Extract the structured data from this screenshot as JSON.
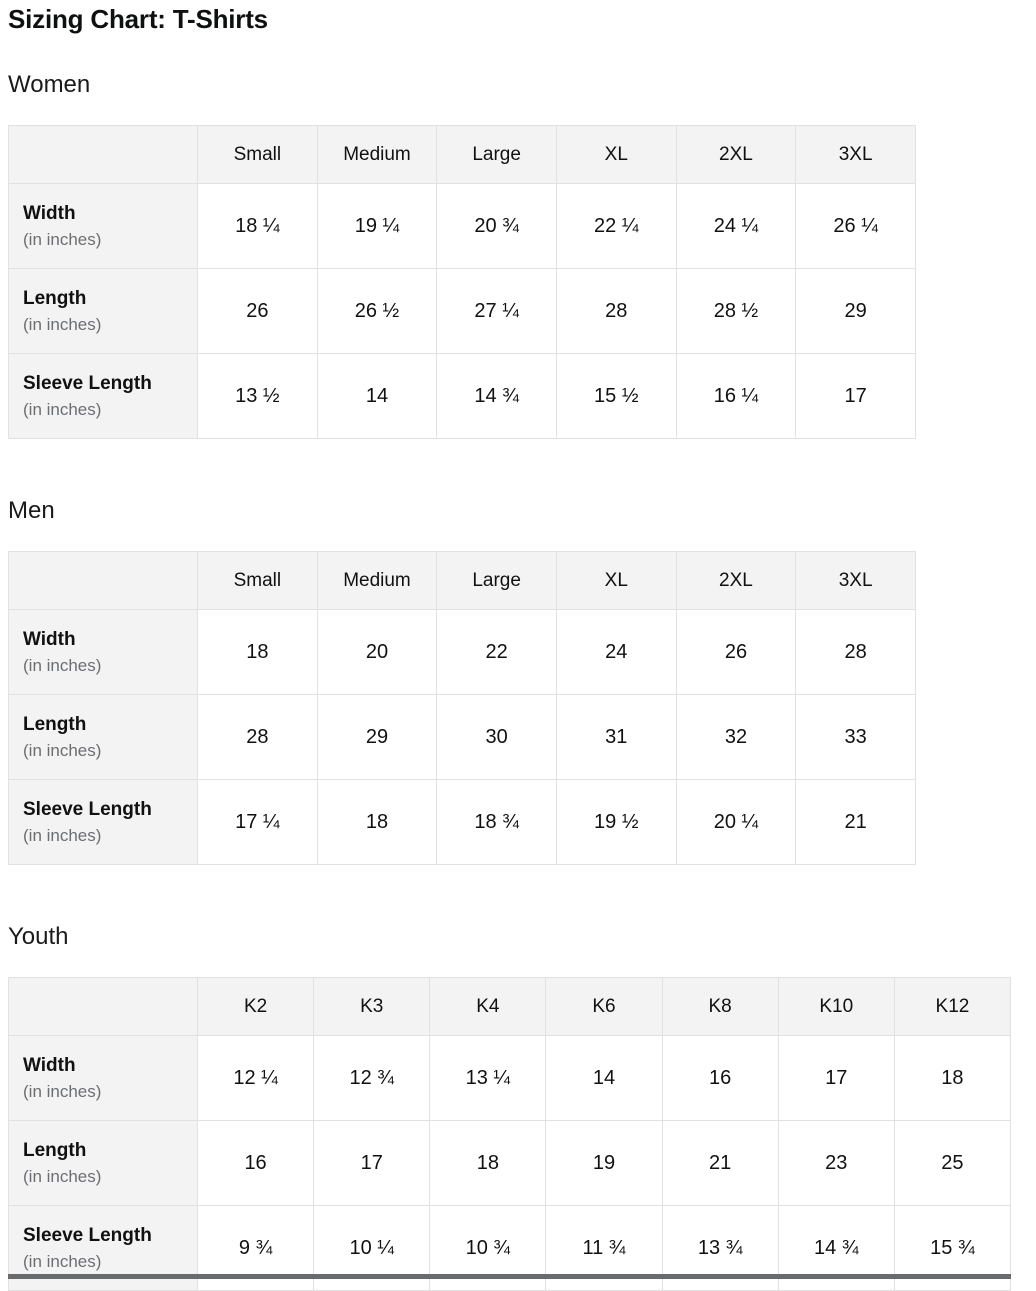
{
  "page": {
    "title": "Sizing Chart: T-Shirts"
  },
  "colors": {
    "header_bg": "#f3f3f3",
    "cell_border": "#e1e1e1",
    "text": "#0f1111",
    "muted_text": "#6c6e71",
    "bottom_edge": "#686b6d"
  },
  "chart_data": [
    {
      "type": "table",
      "section": "Women",
      "columns": [
        "Small",
        "Medium",
        "Large",
        "XL",
        "2XL",
        "3XL"
      ],
      "rows": [
        {
          "label": "Width",
          "unit": "(in inches)",
          "values": [
            "18 ¼",
            "19 ¼",
            "20 ¾",
            "22 ¼",
            "24 ¼",
            "26 ¼"
          ]
        },
        {
          "label": "Length",
          "unit": "(in inches)",
          "values": [
            "26",
            "26 ½",
            "27 ¼",
            "28",
            "28 ½",
            "29"
          ]
        },
        {
          "label": "Sleeve Length",
          "unit": "(in inches)",
          "values": [
            "13 ½",
            "14",
            "14 ¾",
            "15 ½",
            "16 ¼",
            "17"
          ]
        }
      ]
    },
    {
      "type": "table",
      "section": "Men",
      "columns": [
        "Small",
        "Medium",
        "Large",
        "XL",
        "2XL",
        "3XL"
      ],
      "rows": [
        {
          "label": "Width",
          "unit": "(in inches)",
          "values": [
            "18",
            "20",
            "22",
            "24",
            "26",
            "28"
          ]
        },
        {
          "label": "Length",
          "unit": "(in inches)",
          "values": [
            "28",
            "29",
            "30",
            "31",
            "32",
            "33"
          ]
        },
        {
          "label": "Sleeve Length",
          "unit": "(in inches)",
          "values": [
            "17 ¼",
            "18",
            "18 ¾",
            "19 ½",
            "20 ¼",
            "21"
          ]
        }
      ]
    },
    {
      "type": "table",
      "section": "Youth",
      "columns": [
        "K2",
        "K3",
        "K4",
        "K6",
        "K8",
        "K10",
        "K12"
      ],
      "rows": [
        {
          "label": "Width",
          "unit": "(in inches)",
          "values": [
            "12 ¼",
            "12 ¾",
            "13 ¼",
            "14",
            "16",
            "17",
            "18"
          ]
        },
        {
          "label": "Length",
          "unit": "(in inches)",
          "values": [
            "16",
            "17",
            "18",
            "19",
            "21",
            "23",
            "25"
          ]
        },
        {
          "label": "Sleeve Length",
          "unit": "(in inches)",
          "values": [
            "9 ¾",
            "10 ¼",
            "10 ¾",
            "11 ¾",
            "13 ¾",
            "14 ¾",
            "15 ¾"
          ]
        }
      ]
    }
  ]
}
